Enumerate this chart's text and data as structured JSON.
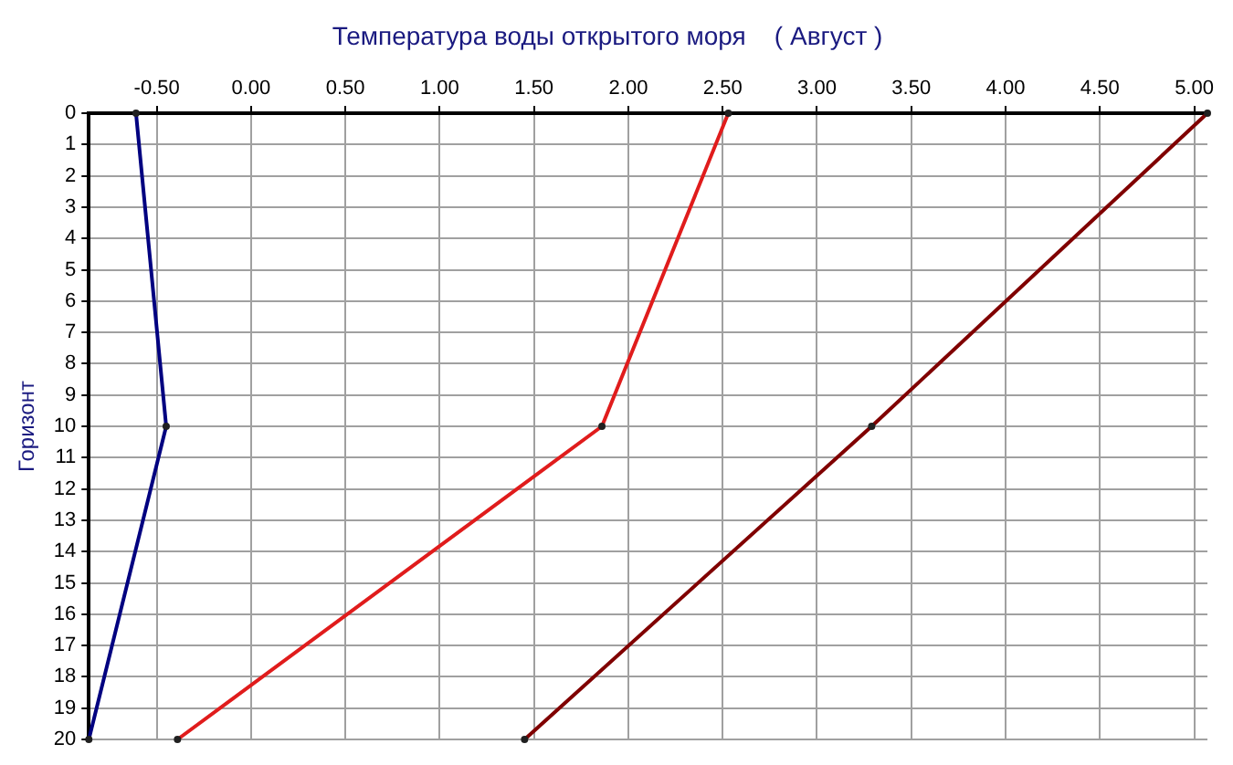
{
  "chart_data": {
    "type": "line",
    "title": "Температура воды открытого моря    ( Август )",
    "ylabel": "Горизонт",
    "xlim": [
      -0.86,
      5.07
    ],
    "xticks": [
      {
        "value": -0.5,
        "label": "-0.50"
      },
      {
        "value": 0,
        "label": "0.00"
      },
      {
        "value": 0.5,
        "label": "0.50"
      },
      {
        "value": 1,
        "label": "1.00"
      },
      {
        "value": 1.5,
        "label": "1.50"
      },
      {
        "value": 2,
        "label": "2.00"
      },
      {
        "value": 2.5,
        "label": "2.50"
      },
      {
        "value": 3,
        "label": "3.00"
      },
      {
        "value": 3.5,
        "label": "3.50"
      },
      {
        "value": 4,
        "label": "4.00"
      },
      {
        "value": 4.5,
        "label": "4.50"
      },
      {
        "value": 5,
        "label": "5.00"
      }
    ],
    "ylim": [
      20,
      0
    ],
    "yticks": [
      0,
      1,
      2,
      3,
      4,
      5,
      6,
      7,
      8,
      9,
      10,
      11,
      12,
      13,
      14,
      15,
      16,
      17,
      18,
      19,
      20
    ],
    "grid": true,
    "legend": false,
    "marker": "circle",
    "line_style": "solid",
    "series": [
      {
        "color": "#000080",
        "x": [
          -0.61,
          -0.45,
          -0.86
        ],
        "values": [
          0,
          10,
          20
        ]
      },
      {
        "color": "#e01c1c",
        "x": [
          2.53,
          1.86,
          -0.39
        ],
        "values": [
          0,
          10,
          20
        ]
      },
      {
        "color": "#800000",
        "x": [
          5.07,
          3.29,
          1.45
        ],
        "values": [
          0,
          10,
          20
        ]
      }
    ]
  }
}
